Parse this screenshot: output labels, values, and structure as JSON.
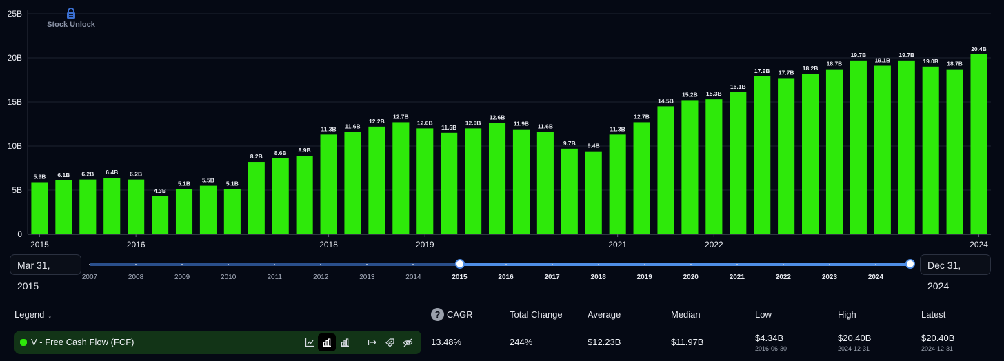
{
  "brand": {
    "name": "Stock Unlock"
  },
  "chart_data": {
    "type": "bar",
    "title": "",
    "ylim": [
      0,
      25
    ],
    "y_ticks": [
      "0",
      "5B",
      "10B",
      "15B",
      "20B",
      "25B"
    ],
    "grid": true,
    "bar_color": "#2ee90a",
    "x_tick_labels": [
      "2015",
      "2016",
      "2018",
      "2019",
      "2021",
      "2022",
      "2024"
    ],
    "categories": [
      "2015-03-31",
      "2015-06-30",
      "2015-09-30",
      "2015-12-31",
      "2016-03-31",
      "2016-06-30",
      "2016-09-30",
      "2016-12-31",
      "2017-03-31",
      "2017-06-30",
      "2017-09-30",
      "2017-12-31",
      "2018-03-31",
      "2018-06-30",
      "2018-09-30",
      "2018-12-31",
      "2019-03-31",
      "2019-06-30",
      "2019-09-30",
      "2019-12-31",
      "2020-03-31",
      "2020-06-30",
      "2020-09-30",
      "2020-12-31",
      "2021-03-31",
      "2021-06-30",
      "2021-09-30",
      "2021-12-31",
      "2022-03-31",
      "2022-06-30",
      "2022-09-30",
      "2022-12-31",
      "2023-03-31",
      "2023-06-30",
      "2023-09-30",
      "2023-12-31",
      "2024-03-31",
      "2024-06-30",
      "2024-09-30",
      "2024-12-31"
    ],
    "values": [
      5.9,
      6.1,
      6.2,
      6.4,
      6.2,
      4.3,
      5.1,
      5.5,
      5.1,
      8.2,
      8.6,
      8.9,
      11.3,
      11.6,
      12.2,
      12.7,
      12.0,
      11.5,
      12.0,
      12.6,
      11.9,
      11.6,
      9.7,
      9.4,
      11.3,
      12.7,
      14.5,
      15.2,
      15.3,
      16.1,
      17.9,
      17.7,
      18.2,
      18.7,
      19.7,
      19.1,
      19.7,
      19.0,
      18.7,
      20.4
    ],
    "labels": [
      "5.9B",
      "6.1B",
      "6.2B",
      "6.4B",
      "6.2B",
      "4.3B",
      "5.1B",
      "5.5B",
      "5.1B",
      "8.2B",
      "8.6B",
      "8.9B",
      "11.3B",
      "11.6B",
      "12.2B",
      "12.7B",
      "12.0B",
      "11.5B",
      "12.0B",
      "12.6B",
      "11.9B",
      "11.6B",
      "9.7B",
      "9.4B",
      "11.3B",
      "12.7B",
      "14.5B",
      "15.2B",
      "15.3B",
      "16.1B",
      "17.9B",
      "17.7B",
      "18.2B",
      "18.7B",
      "19.7B",
      "19.1B",
      "19.7B",
      "19.0B",
      "18.7B",
      "20.4B"
    ]
  },
  "range": {
    "start": "Mar 31, 2015",
    "end": "Dec 31, 2024",
    "years": [
      "2007",
      "2008",
      "2009",
      "2010",
      "2011",
      "2012",
      "2013",
      "2014",
      "2015",
      "2016",
      "2017",
      "2018",
      "2019",
      "2020",
      "2021",
      "2022",
      "2023",
      "2024"
    ],
    "active_from": "2015"
  },
  "stats": {
    "legend_label": "Legend",
    "legend_sort_icon": "arrow-down-icon",
    "help_icon": "?",
    "headers": [
      "CAGR",
      "Total Change",
      "Average",
      "Median",
      "Low",
      "High",
      "Latest"
    ],
    "series": {
      "name": "V - Free Cash Flow (FCF)",
      "color": "#2ee90a",
      "cagr": "13.48%",
      "total_change": "244%",
      "average": "$12.23B",
      "median": "$11.97B",
      "low": "$4.34B",
      "low_date": "2016-06-30",
      "high": "$20.40B",
      "high_date": "2024-12-31",
      "latest": "$20.40B",
      "latest_date": "2024-12-31"
    },
    "controls": [
      "line-chart-icon",
      "bar-chart-icon",
      "stacked-bar-icon",
      "arrow-right-bar-icon",
      "percent-tag-icon",
      "eye-off-icon"
    ]
  }
}
